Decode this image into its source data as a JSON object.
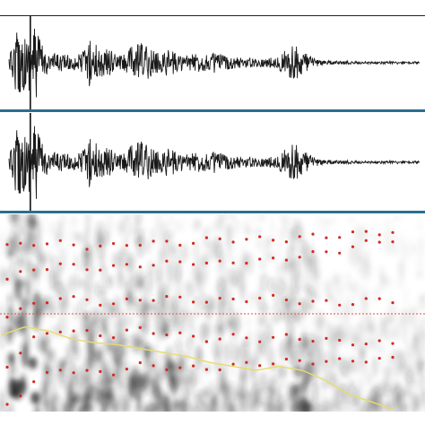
{
  "colors": {
    "trace": "#1a1a1a",
    "divider": "#2b6f8f",
    "frame": "#222222",
    "cursor": "#111111",
    "red_dots": "#d42a1f",
    "threshold_line": "#d9534f",
    "pitch_curve": "#e8dc6a",
    "spectrogram_dark": "#202020"
  },
  "icons": {
    "playhead": "vertical-cursor-line"
  },
  "cursor_position_fraction": 0.052,
  "threshold_level_fraction": 0.5,
  "waveform_envelope": [
    0.1,
    0.85,
    0.55,
    0.95,
    0.3,
    0.22,
    0.2,
    0.18,
    0.2,
    0.55,
    0.4,
    0.35,
    0.2,
    0.2,
    0.45,
    0.5,
    0.3,
    0.25,
    0.35,
    0.2,
    0.18,
    0.22,
    0.2,
    0.25,
    0.18,
    0.15,
    0.12,
    0.12,
    0.1,
    0.12,
    0.12,
    0.35,
    0.4,
    0.3,
    0.12,
    0.06,
    0.05,
    0.04,
    0.04,
    0.03,
    0.03,
    0.03,
    0.03,
    0.03,
    0.03,
    0.03,
    0.03
  ],
  "formant_tracks": [
    [
      0.0,
      0.12,
      0.2,
      0.18,
      0.17,
      0.22,
      0.21,
      0.2,
      0.2,
      0.22,
      0.23,
      0.24,
      0.24,
      0.24,
      0.25,
      0.25
    ],
    [
      0.22,
      0.36,
      0.42,
      0.4,
      0.38,
      0.42,
      0.4,
      0.38,
      0.36,
      0.38,
      0.36,
      0.38,
      0.36,
      0.35,
      0.34,
      0.34
    ],
    [
      0.5,
      0.55,
      0.6,
      0.58,
      0.56,
      0.58,
      0.6,
      0.58,
      0.58,
      0.58,
      0.6,
      0.58,
      0.57,
      0.56,
      0.58,
      0.58
    ],
    [
      0.7,
      0.75,
      0.78,
      0.76,
      0.76,
      0.78,
      0.78,
      0.8,
      0.78,
      0.8,
      0.8,
      0.82,
      0.84,
      0.86,
      0.9,
      0.92
    ],
    [
      0.88,
      0.9,
      0.9,
      0.88,
      0.88,
      0.9,
      0.9,
      0.9,
      0.92,
      0.92,
      0.92,
      0.92,
      0.94,
      0.94,
      0.96,
      0.96
    ]
  ],
  "pitch_curve": [
    0.38,
    0.42,
    0.4,
    0.36,
    0.34,
    0.33,
    0.31,
    0.29,
    0.27,
    0.24,
    0.22,
    0.2,
    0.22,
    0.2,
    0.15,
    0.08,
    0.04,
    0.0
  ]
}
